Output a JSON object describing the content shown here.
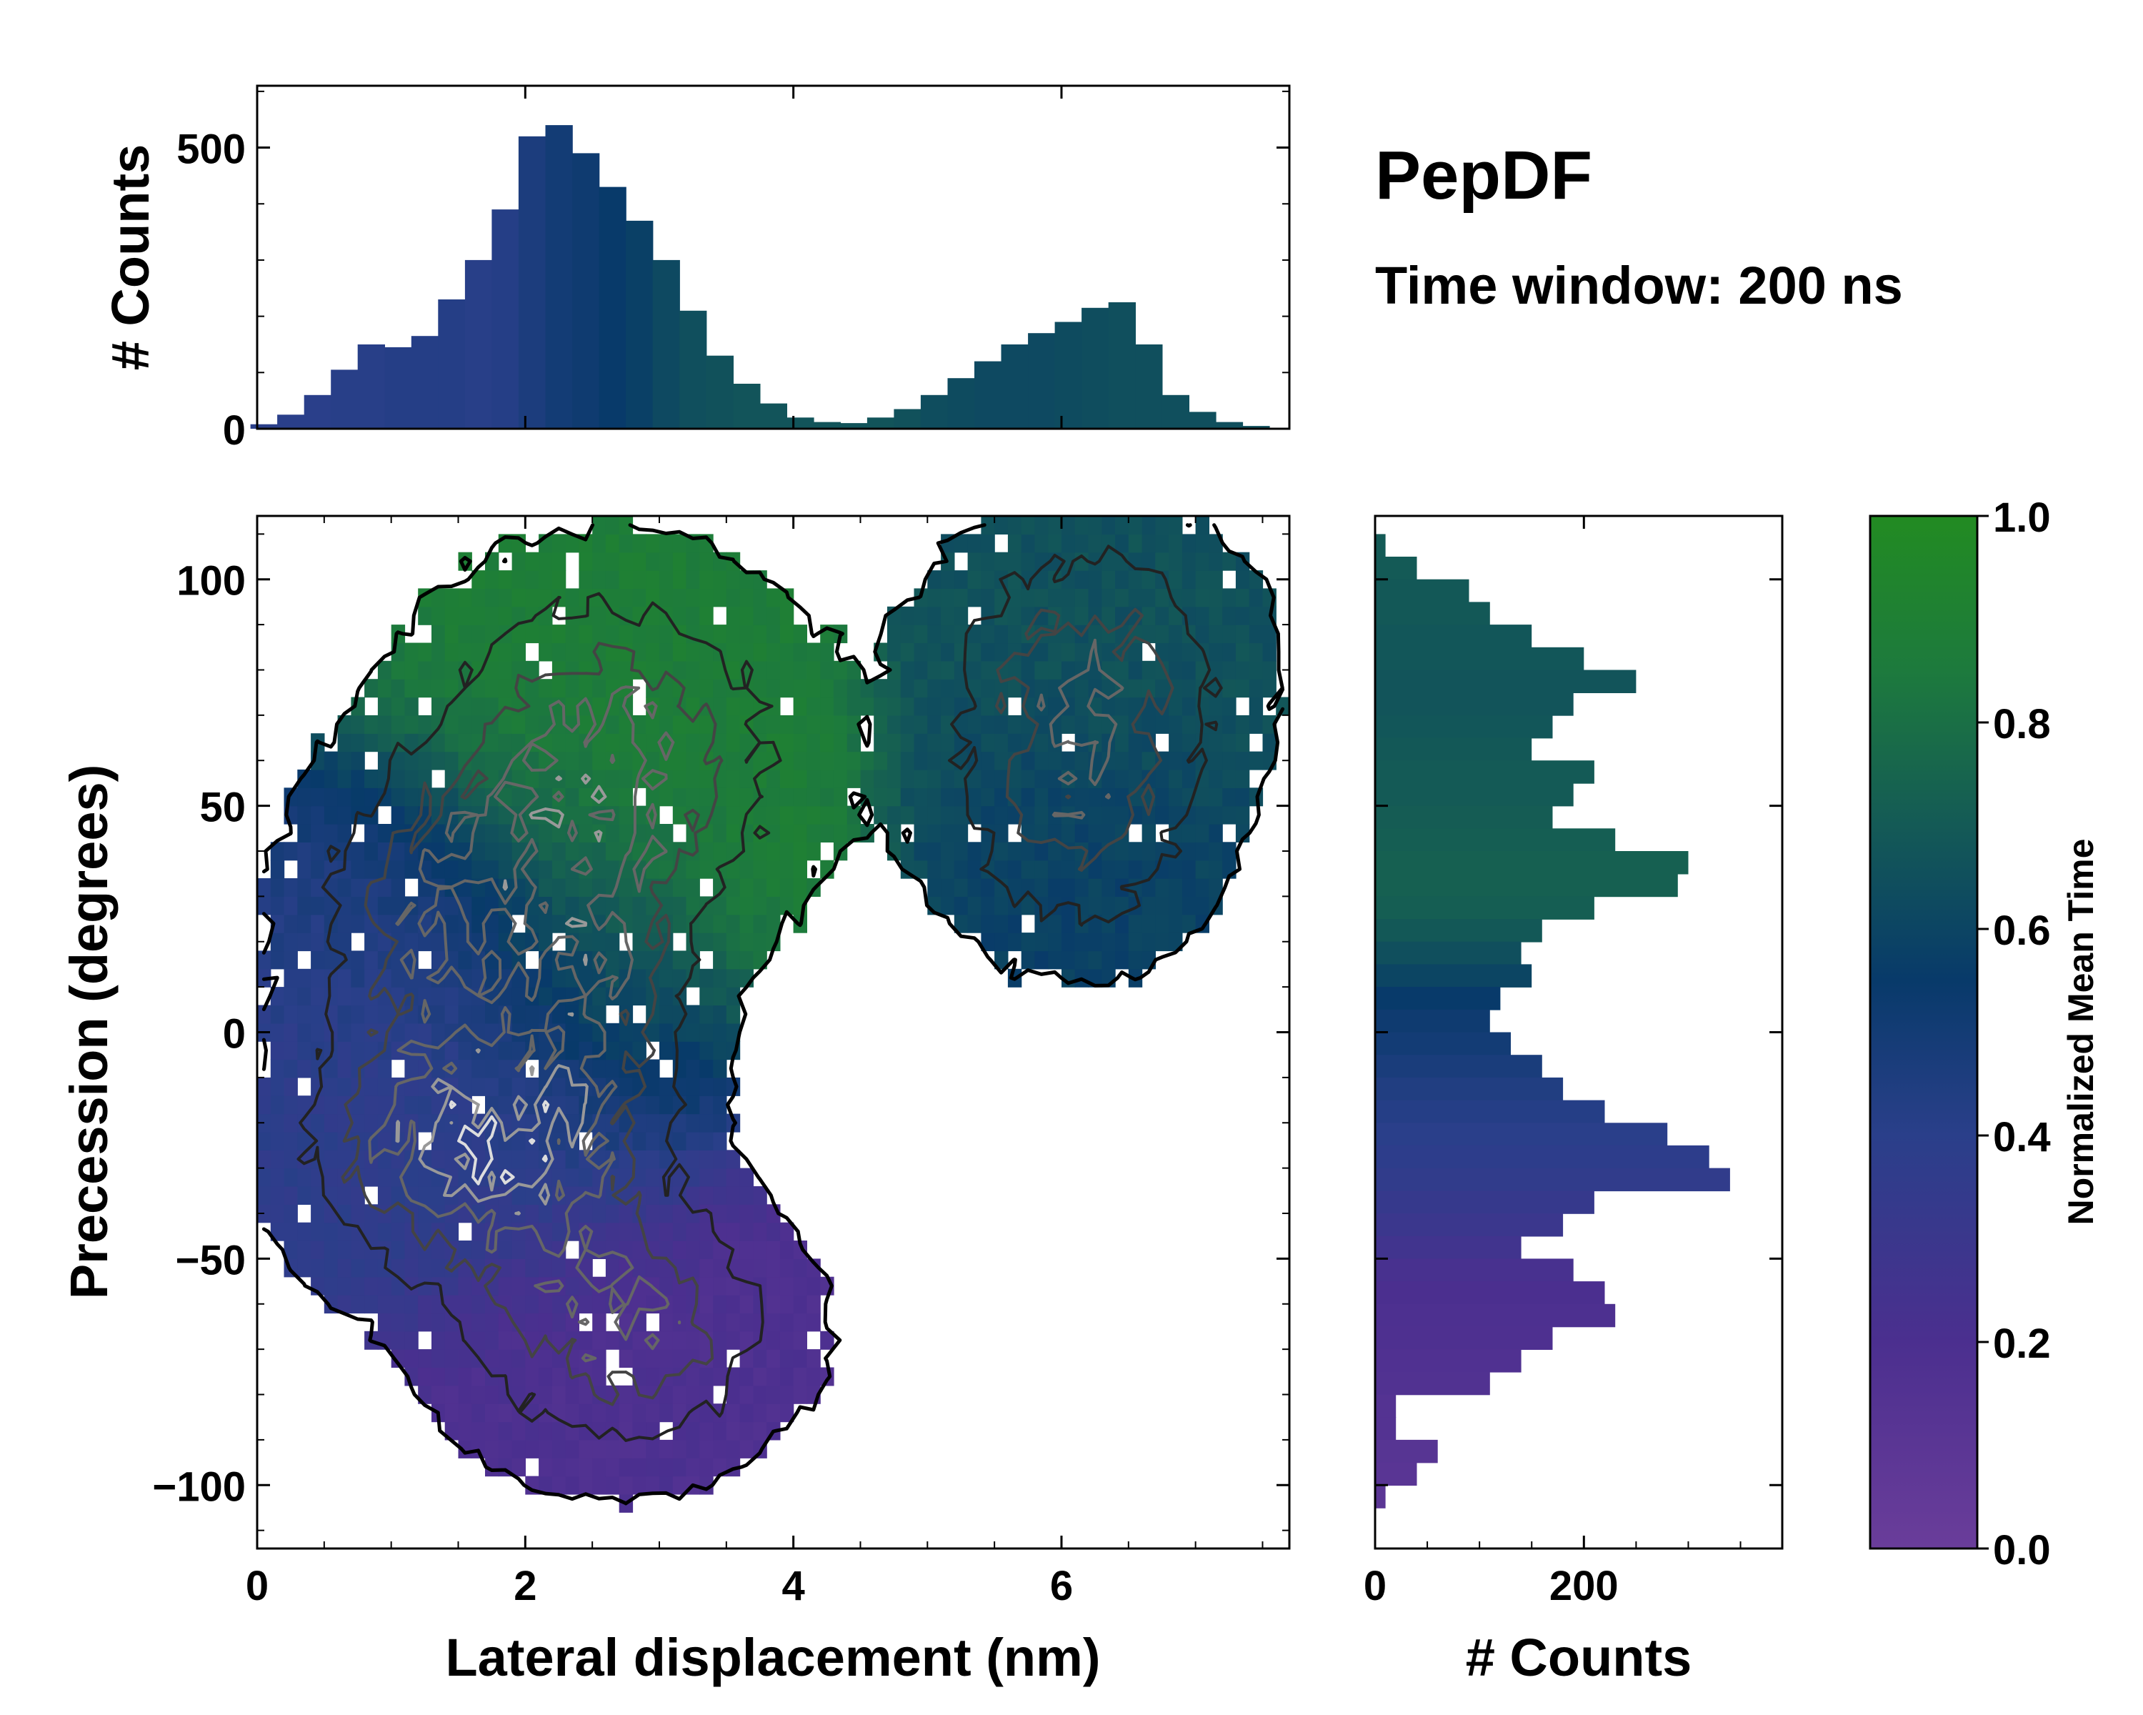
{
  "chart_data": [
    {
      "id": "joint",
      "type": "heatmap",
      "title": "PepDF",
      "subtitle": "Time window: 200 ns",
      "xlabel": "Lateral displacement (nm)",
      "ylabel": "Precession (degrees)",
      "xlim": [
        0,
        7.7
      ],
      "ylim": [
        -114,
        114
      ],
      "xticks": [
        0,
        2,
        4,
        6
      ],
      "yticks": [
        -100,
        -50,
        0,
        50,
        100
      ],
      "x_tick_labels": [
        "0",
        "2",
        "4",
        "6"
      ],
      "y_tick_labels": [
        "−100",
        "−50",
        "0",
        "50",
        "100"
      ],
      "overlay": "density contours (black to white, low to high)",
      "clusters": [
        {
          "cx": 2.6,
          "cy": 60,
          "sx": 0.85,
          "sy": 24,
          "w": 1.0,
          "time": 0.88
        },
        {
          "cx": 1.3,
          "cy": 25,
          "sx": 0.6,
          "sy": 20,
          "w": 0.8,
          "time": 0.42
        },
        {
          "cx": 1.6,
          "cy": -25,
          "sx": 0.75,
          "sy": 18,
          "w": 1.3,
          "time": 0.38
        },
        {
          "cx": 2.7,
          "cy": -65,
          "sx": 0.75,
          "sy": 18,
          "w": 0.9,
          "time": 0.18
        },
        {
          "cx": 2.5,
          "cy": 10,
          "sx": 0.5,
          "sy": 25,
          "w": 0.7,
          "time": 0.62
        },
        {
          "cx": 6.2,
          "cy": 80,
          "sx": 0.7,
          "sy": 20,
          "w": 0.8,
          "time": 0.66
        },
        {
          "cx": 6.1,
          "cy": 45,
          "sx": 0.6,
          "sy": 18,
          "w": 0.6,
          "time": 0.58
        }
      ]
    },
    {
      "id": "top-histogram",
      "type": "bar",
      "ylabel": "# Counts",
      "ylim": [
        0,
        610
      ],
      "yticks": [
        0,
        500
      ],
      "y_tick_labels": [
        "0",
        "500"
      ],
      "x": [
        0.05,
        0.25,
        0.45,
        0.65,
        0.85,
        1.05,
        1.25,
        1.45,
        1.65,
        1.85,
        2.05,
        2.25,
        2.45,
        2.65,
        2.85,
        3.05,
        3.25,
        3.45,
        3.65,
        3.85,
        4.05,
        4.25,
        4.45,
        4.65,
        4.85,
        5.05,
        5.25,
        5.45,
        5.65,
        5.85,
        6.05,
        6.25,
        6.45,
        6.65,
        6.85,
        7.05,
        7.25,
        7.45
      ],
      "values": [
        8,
        25,
        60,
        105,
        150,
        145,
        165,
        230,
        300,
        390,
        520,
        540,
        490,
        430,
        370,
        300,
        210,
        130,
        80,
        45,
        20,
        12,
        10,
        20,
        35,
        60,
        90,
        120,
        150,
        170,
        190,
        215,
        225,
        150,
        60,
        30,
        12,
        5
      ],
      "times": [
        0.4,
        0.4,
        0.4,
        0.41,
        0.41,
        0.42,
        0.42,
        0.42,
        0.41,
        0.42,
        0.46,
        0.5,
        0.52,
        0.55,
        0.58,
        0.62,
        0.65,
        0.66,
        0.67,
        0.67,
        0.67,
        0.67,
        0.67,
        0.67,
        0.66,
        0.64,
        0.63,
        0.62,
        0.62,
        0.62,
        0.63,
        0.64,
        0.65,
        0.65,
        0.65,
        0.65,
        0.65,
        0.65
      ]
    },
    {
      "id": "right-histogram",
      "type": "bar",
      "orientation": "horizontal",
      "xlabel": "# Counts",
      "xlim": [
        0,
        390
      ],
      "xticks": [
        0,
        200
      ],
      "x_tick_labels": [
        "0",
        "200"
      ],
      "y": [
        107.5,
        102.5,
        97.5,
        92.5,
        87.5,
        82.5,
        77.5,
        72.5,
        67.5,
        62.5,
        57.5,
        52.5,
        47.5,
        42.5,
        37.5,
        32.5,
        27.5,
        22.5,
        17.5,
        12.5,
        7.5,
        2.5,
        -2.5,
        -7.5,
        -12.5,
        -17.5,
        -22.5,
        -27.5,
        -32.5,
        -37.5,
        -42.5,
        -47.5,
        -52.5,
        -57.5,
        -62.5,
        -67.5,
        -72.5,
        -77.5,
        -82.5,
        -87.5,
        -92.5,
        -97.5,
        -102.5
      ],
      "values": [
        10,
        40,
        90,
        110,
        150,
        200,
        250,
        190,
        170,
        150,
        210,
        190,
        170,
        230,
        300,
        290,
        210,
        160,
        140,
        150,
        120,
        110,
        130,
        160,
        180,
        220,
        280,
        320,
        340,
        210,
        180,
        140,
        190,
        220,
        230,
        170,
        140,
        110,
        20,
        20,
        60,
        40,
        10
      ],
      "times": [
        0.7,
        0.7,
        0.69,
        0.69,
        0.68,
        0.68,
        0.67,
        0.67,
        0.68,
        0.69,
        0.7,
        0.7,
        0.71,
        0.72,
        0.73,
        0.73,
        0.72,
        0.69,
        0.65,
        0.6,
        0.55,
        0.52,
        0.5,
        0.47,
        0.44,
        0.42,
        0.4,
        0.38,
        0.36,
        0.33,
        0.3,
        0.26,
        0.22,
        0.2,
        0.19,
        0.18,
        0.17,
        0.16,
        0.14,
        0.14,
        0.12,
        0.11,
        0.1
      ]
    },
    {
      "id": "colorbar",
      "type": "colorbar",
      "label": "Normalized Mean Time",
      "range": [
        0,
        1
      ],
      "ticks": [
        0,
        0.2,
        0.4,
        0.6,
        0.8,
        1.0
      ],
      "tick_labels": [
        "0.0",
        "0.2",
        "0.4",
        "0.6",
        "0.8",
        "1.0"
      ],
      "colormap": [
        {
          "stop": 0.0,
          "color": "#6a3d9a"
        },
        {
          "stop": 0.2,
          "color": "#4b2f8f"
        },
        {
          "stop": 0.4,
          "color": "#2a3f8a"
        },
        {
          "stop": 0.55,
          "color": "#083a6a"
        },
        {
          "stop": 0.7,
          "color": "#145a56"
        },
        {
          "stop": 0.85,
          "color": "#1d7a3d"
        },
        {
          "stop": 1.0,
          "color": "#228b22"
        }
      ]
    }
  ]
}
